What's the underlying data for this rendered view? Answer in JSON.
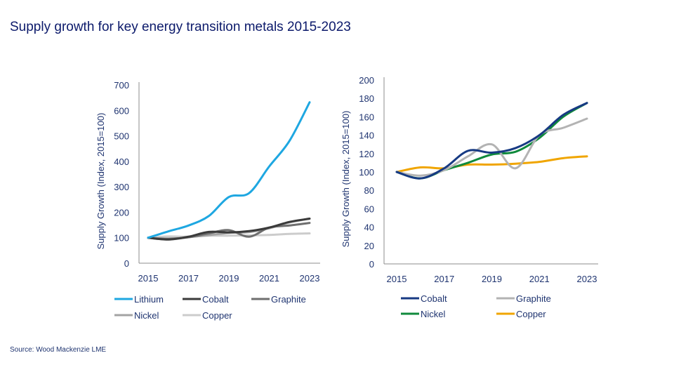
{
  "title": "Supply growth for key energy transition metals 2015-2023",
  "source": "Source:  Wood Mackenzie LME",
  "chart_data": [
    {
      "type": "line",
      "ylabel": "Supply Growth (Index, 2015=100)",
      "xlabel": "",
      "x": [
        2015,
        2016,
        2017,
        2018,
        2019,
        2020,
        2021,
        2022,
        2023
      ],
      "xticks": [
        "2015",
        "2017",
        "2019",
        "2021",
        "2023"
      ],
      "ylim": [
        0,
        700
      ],
      "yticks": [
        0,
        100,
        200,
        300,
        400,
        500,
        600,
        700
      ],
      "grid": false,
      "legend": "bottom",
      "series": [
        {
          "name": "Lithium",
          "color": "#1ea7e1",
          "values": [
            100,
            125,
            148,
            185,
            260,
            275,
            380,
            480,
            632
          ]
        },
        {
          "name": "Cobalt",
          "color": "#3a3a3a",
          "values": [
            100,
            93,
            104,
            123,
            121,
            126,
            140,
            162,
            175
          ]
        },
        {
          "name": "Graphite",
          "color": "#6e6e6e",
          "values": [
            100,
            96,
            102,
            117,
            130,
            104,
            140,
            148,
            158
          ]
        },
        {
          "name": "Nickel",
          "color": "#a3a3a3",
          "values": [
            100,
            93,
            102,
            110,
            119,
            122,
            137,
            160,
            175
          ]
        },
        {
          "name": "Copper",
          "color": "#cccccc",
          "values": [
            100,
            105,
            104,
            108,
            108,
            109,
            111,
            115,
            117
          ]
        }
      ]
    },
    {
      "type": "line",
      "ylabel": "Supply Growth (Index, 2015=100)",
      "xlabel": "",
      "x": [
        2015,
        2016,
        2017,
        2018,
        2019,
        2020,
        2021,
        2022,
        2023
      ],
      "xticks": [
        "2015",
        "2017",
        "2019",
        "2021",
        "2023"
      ],
      "ylim": [
        0,
        200
      ],
      "yticks": [
        0,
        20,
        40,
        60,
        80,
        100,
        120,
        140,
        160,
        180,
        200
      ],
      "grid": false,
      "legend": "bottom",
      "series": [
        {
          "name": "Cobalt",
          "color": "#173a83",
          "values": [
            100,
            93,
            104,
            123,
            121,
            126,
            140,
            162,
            175
          ]
        },
        {
          "name": "Graphite",
          "color": "#b3b3b3",
          "values": [
            100,
            96,
            102,
            117,
            130,
            104,
            140,
            148,
            158
          ]
        },
        {
          "name": "Nickel",
          "color": "#108a3c",
          "values": [
            100,
            93,
            102,
            110,
            119,
            122,
            137,
            160,
            175
          ]
        },
        {
          "name": "Copper",
          "color": "#f0a500",
          "values": [
            100,
            105,
            104,
            108,
            108,
            109,
            111,
            115,
            117
          ]
        }
      ]
    }
  ]
}
